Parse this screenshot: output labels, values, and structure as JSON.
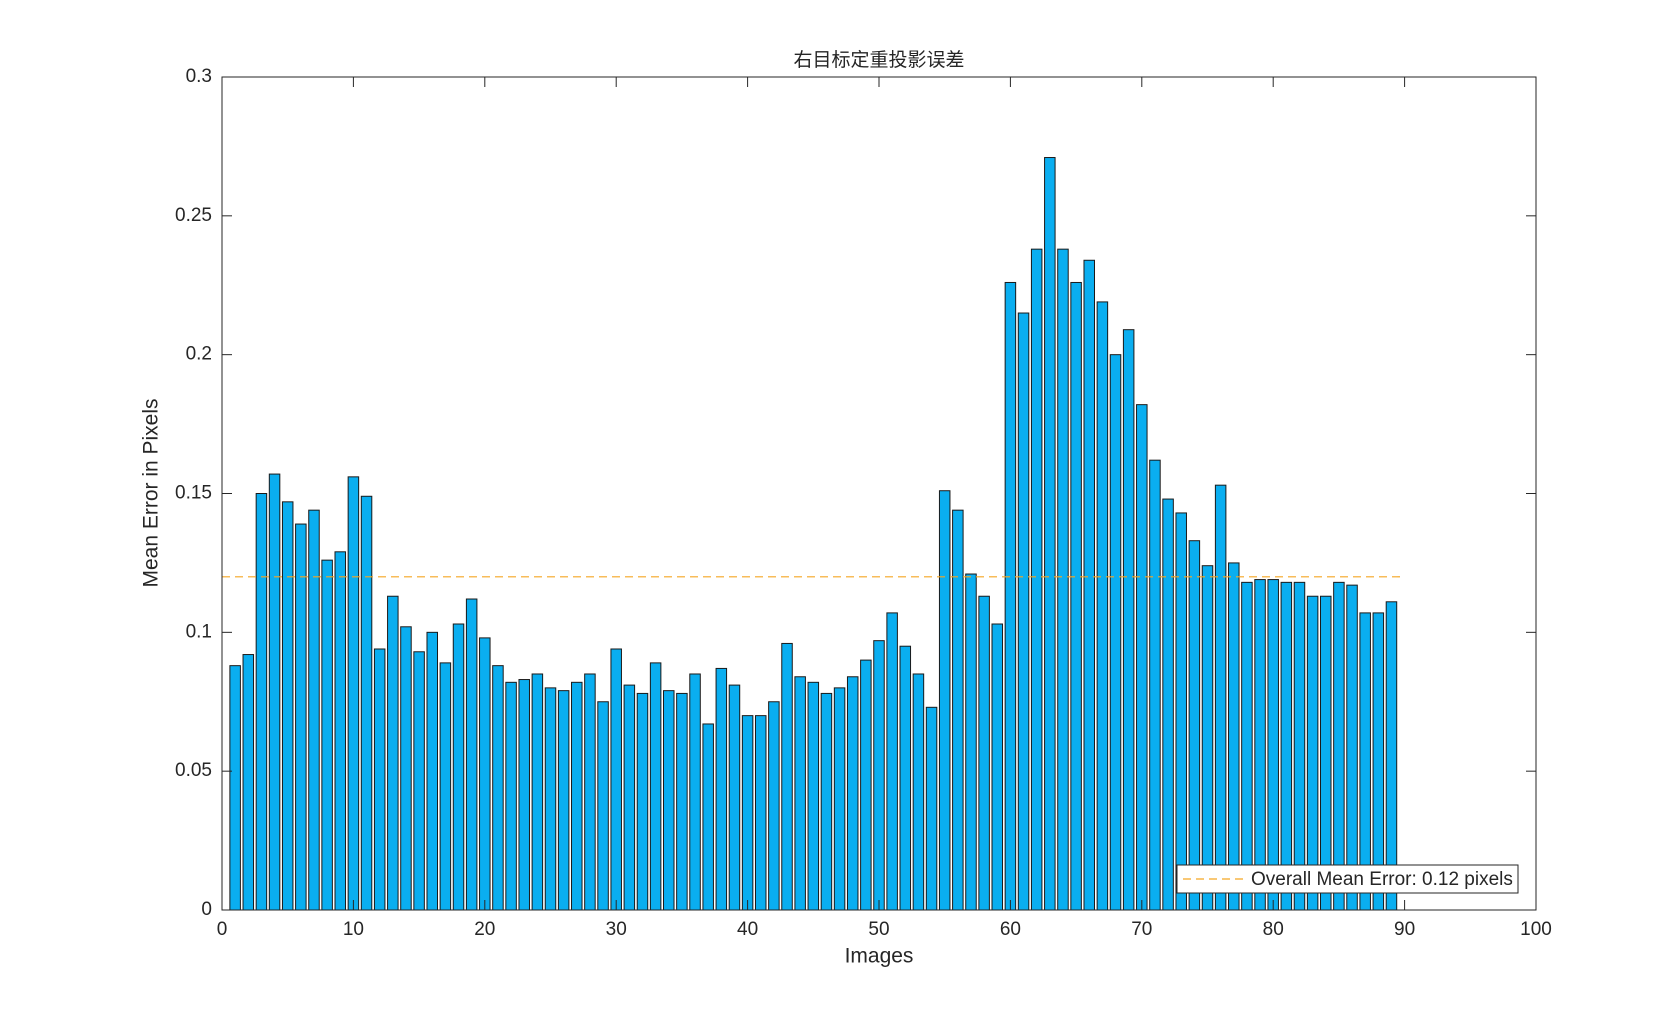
{
  "chart_data": {
    "type": "bar",
    "title": "右目标定重投影误差",
    "x_label": "Images",
    "y_label": "Mean Error in Pixels",
    "x": [
      1,
      2,
      3,
      4,
      5,
      6,
      7,
      8,
      9,
      10,
      11,
      12,
      13,
      14,
      15,
      16,
      17,
      18,
      19,
      20,
      21,
      22,
      23,
      24,
      25,
      26,
      27,
      28,
      29,
      30,
      31,
      32,
      33,
      34,
      35,
      36,
      37,
      38,
      39,
      40,
      41,
      42,
      43,
      44,
      45,
      46,
      47,
      48,
      49,
      50,
      51,
      52,
      53,
      54,
      55,
      56,
      57,
      58,
      59,
      60,
      61,
      62,
      63,
      64,
      65,
      66,
      67,
      68,
      69,
      70,
      71,
      72,
      73,
      74,
      75,
      76,
      77,
      78,
      79,
      80,
      81,
      82,
      83,
      84,
      85,
      86,
      87,
      88,
      89
    ],
    "series": [
      {
        "name": "Images",
        "color": "#0aaef0",
        "values": [
          0.088,
          0.092,
          0.15,
          0.157,
          0.147,
          0.139,
          0.144,
          0.126,
          0.129,
          0.156,
          0.149,
          0.094,
          0.113,
          0.102,
          0.093,
          0.1,
          0.089,
          0.103,
          0.112,
          0.098,
          0.088,
          0.082,
          0.083,
          0.085,
          0.08,
          0.079,
          0.082,
          0.085,
          0.075,
          0.094,
          0.081,
          0.078,
          0.089,
          0.079,
          0.078,
          0.085,
          0.067,
          0.087,
          0.081,
          0.07,
          0.07,
          0.075,
          0.096,
          0.084,
          0.082,
          0.078,
          0.08,
          0.084,
          0.09,
          0.097,
          0.107,
          0.095,
          0.085,
          0.073,
          0.151,
          0.144,
          0.121,
          0.113,
          0.103,
          0.226,
          0.215,
          0.238,
          0.271,
          0.238,
          0.226,
          0.234,
          0.219,
          0.2,
          0.209,
          0.182,
          0.162,
          0.148,
          0.143,
          0.133,
          0.124,
          0.153,
          0.125,
          0.118,
          0.119,
          0.119,
          0.118,
          0.118,
          0.113,
          0.113,
          0.118,
          0.117,
          0.107,
          0.107,
          0.111
        ]
      }
    ],
    "mean_line": {
      "name": "Overall Mean Error: 0.12 pixels",
      "value": 0.12,
      "x": [
        0,
        90
      ],
      "color": "#f5a623"
    },
    "xlim": [
      0,
      100
    ],
    "xticks": [
      0,
      10,
      20,
      30,
      40,
      50,
      60,
      70,
      80,
      90,
      100
    ],
    "ylim": [
      0,
      0.3
    ],
    "yticks": [
      0,
      0.05,
      0.1,
      0.15,
      0.2,
      0.25,
      0.3
    ],
    "bar_width": 0.8,
    "legend": "lower right",
    "grid": false
  }
}
